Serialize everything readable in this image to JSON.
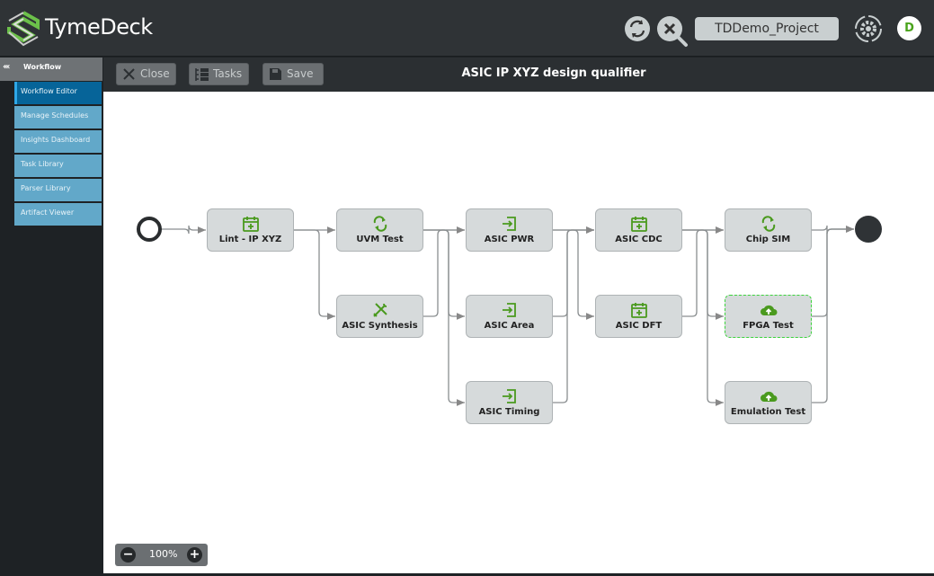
{
  "header": {
    "brand": "TymeDeck",
    "project": "TDDemo_Project",
    "avatar_initial": "D",
    "icons": [
      "refresh-icon",
      "search-clear-icon",
      "settings-icon"
    ]
  },
  "sidebar": {
    "section": "Workflow",
    "items": [
      {
        "label": "Workflow Editor",
        "active": true
      },
      {
        "label": "Manage Schedules"
      },
      {
        "label": "Insights Dashboard"
      },
      {
        "label": "Task Library"
      },
      {
        "label": "Parser Library"
      },
      {
        "label": "Artifact Viewer"
      }
    ]
  },
  "toolbar": {
    "close": "Close",
    "tasks": "Tasks",
    "save": "Save",
    "title": "ASIC IP XYZ design qualifier"
  },
  "workflow": {
    "nodes": [
      {
        "id": "lint",
        "label": "Lint - IP XYZ",
        "icon": "calendar-plus-icon",
        "col": 0,
        "row": 0
      },
      {
        "id": "uvm",
        "label": "UVM Test",
        "icon": "loop-icon",
        "col": 1,
        "row": 0
      },
      {
        "id": "synth",
        "label": "ASIC Synthesis",
        "icon": "tools-icon",
        "col": 1,
        "row": 1
      },
      {
        "id": "pwr",
        "label": "ASIC PWR",
        "icon": "import-icon",
        "col": 2,
        "row": 0
      },
      {
        "id": "area",
        "label": "ASIC Area",
        "icon": "import-icon",
        "col": 2,
        "row": 1
      },
      {
        "id": "timing",
        "label": "ASIC Timing",
        "icon": "import-icon",
        "col": 2,
        "row": 2
      },
      {
        "id": "cdc",
        "label": "ASIC CDC",
        "icon": "calendar-plus-icon",
        "col": 3,
        "row": 0
      },
      {
        "id": "dft",
        "label": "ASIC DFT",
        "icon": "calendar-plus-icon",
        "col": 3,
        "row": 1
      },
      {
        "id": "chipsim",
        "label": "Chip SIM",
        "icon": "loop-icon",
        "col": 4,
        "row": 0
      },
      {
        "id": "fpga",
        "label": "FPGA Test",
        "icon": "cloud-upload-icon",
        "col": 4,
        "row": 1,
        "selected": true
      },
      {
        "id": "emu",
        "label": "Emulation Test",
        "icon": "cloud-upload-icon",
        "col": 4,
        "row": 2
      }
    ],
    "edges": [
      [
        "start",
        "lint"
      ],
      [
        "lint",
        "uvm"
      ],
      [
        "lint",
        "synth"
      ],
      [
        "uvm",
        "pwr"
      ],
      [
        "uvm",
        "area"
      ],
      [
        "uvm",
        "timing"
      ],
      [
        "synth",
        "pwr"
      ],
      [
        "pwr",
        "cdc"
      ],
      [
        "pwr",
        "dft"
      ],
      [
        "area",
        "cdc"
      ],
      [
        "timing",
        "cdc"
      ],
      [
        "cdc",
        "chipsim"
      ],
      [
        "cdc",
        "fpga"
      ],
      [
        "cdc",
        "emu"
      ],
      [
        "dft",
        "chipsim"
      ],
      [
        "chipsim",
        "end"
      ],
      [
        "fpga",
        "end"
      ],
      [
        "emu",
        "end"
      ]
    ],
    "accent": "#4a9a1e"
  },
  "zoom": {
    "level": "100%",
    "minus": "−",
    "plus": "+"
  }
}
